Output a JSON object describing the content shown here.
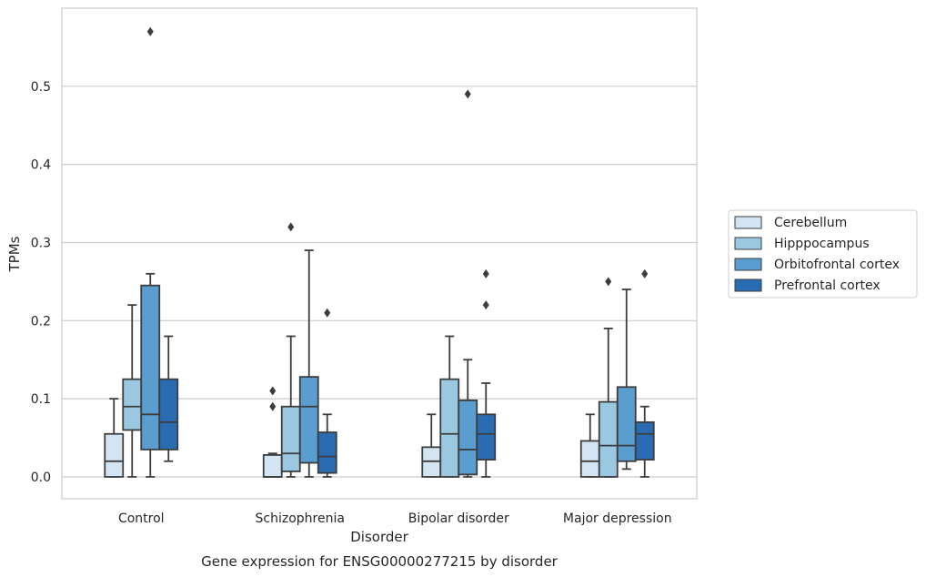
{
  "chart_data": {
    "type": "box",
    "xlabel": "Disorder",
    "ylabel": "TPMs",
    "caption": "Gene expression for ENSG00000277215 by disorder",
    "categories": [
      "Control",
      "Schizophrenia",
      "Bipolar disorder",
      "Major depression"
    ],
    "ylim": [
      -0.028,
      0.6
    ],
    "yticks": [
      "0.0",
      "0.1",
      "0.2",
      "0.3",
      "0.4",
      "0.5"
    ],
    "ytick_values": [
      0.0,
      0.1,
      0.2,
      0.3,
      0.4,
      0.5
    ],
    "grid": "horizontal",
    "legend_position": "right",
    "series": [
      {
        "name": "Cerebellum",
        "color": "#d3e4f3",
        "boxes": [
          {
            "whislo": 0.0,
            "q1": 0.0,
            "med": 0.02,
            "q3": 0.055,
            "whishi": 0.1,
            "fliers": []
          },
          {
            "whislo": 0.0,
            "q1": 0.0,
            "med": 0.0,
            "q3": 0.028,
            "whishi": 0.03,
            "fliers": [
              0.09,
              0.11
            ]
          },
          {
            "whislo": 0.0,
            "q1": 0.0,
            "med": 0.02,
            "q3": 0.038,
            "whishi": 0.08,
            "fliers": []
          },
          {
            "whislo": 0.0,
            "q1": 0.0,
            "med": 0.02,
            "q3": 0.046,
            "whishi": 0.08,
            "fliers": []
          }
        ]
      },
      {
        "name": "Hipppocampus",
        "color": "#9ac8e0",
        "boxes": [
          {
            "whislo": 0.0,
            "q1": 0.06,
            "med": 0.09,
            "q3": 0.125,
            "whishi": 0.22,
            "fliers": []
          },
          {
            "whislo": 0.0,
            "q1": 0.007,
            "med": 0.03,
            "q3": 0.09,
            "whishi": 0.18,
            "fliers": [
              0.32
            ]
          },
          {
            "whislo": 0.0,
            "q1": 0.0,
            "med": 0.055,
            "q3": 0.125,
            "whishi": 0.18,
            "fliers": []
          },
          {
            "whislo": 0.0,
            "q1": 0.0,
            "med": 0.04,
            "q3": 0.096,
            "whishi": 0.19,
            "fliers": [
              0.25
            ]
          }
        ]
      },
      {
        "name": "Orbitofrontal cortex",
        "color": "#5a9dcf",
        "boxes": [
          {
            "whislo": 0.0,
            "q1": 0.035,
            "med": 0.08,
            "q3": 0.245,
            "whishi": 0.26,
            "fliers": [
              0.57
            ]
          },
          {
            "whislo": 0.0,
            "q1": 0.018,
            "med": 0.09,
            "q3": 0.128,
            "whishi": 0.29,
            "fliers": []
          },
          {
            "whislo": 0.0,
            "q1": 0.003,
            "med": 0.035,
            "q3": 0.098,
            "whishi": 0.15,
            "fliers": [
              0.49
            ]
          },
          {
            "whislo": 0.01,
            "q1": 0.02,
            "med": 0.04,
            "q3": 0.115,
            "whishi": 0.24,
            "fliers": []
          }
        ]
      },
      {
        "name": "Prefrontal cortex",
        "color": "#2a6cb2",
        "boxes": [
          {
            "whislo": 0.02,
            "q1": 0.035,
            "med": 0.07,
            "q3": 0.125,
            "whishi": 0.18,
            "fliers": []
          },
          {
            "whislo": 0.0,
            "q1": 0.005,
            "med": 0.026,
            "q3": 0.057,
            "whishi": 0.08,
            "fliers": [
              0.21
            ]
          },
          {
            "whislo": 0.0,
            "q1": 0.022,
            "med": 0.055,
            "q3": 0.08,
            "whishi": 0.12,
            "fliers": [
              0.22,
              0.26
            ]
          },
          {
            "whislo": 0.0,
            "q1": 0.022,
            "med": 0.055,
            "q3": 0.07,
            "whishi": 0.09,
            "fliers": [
              0.26
            ]
          }
        ]
      }
    ]
  }
}
